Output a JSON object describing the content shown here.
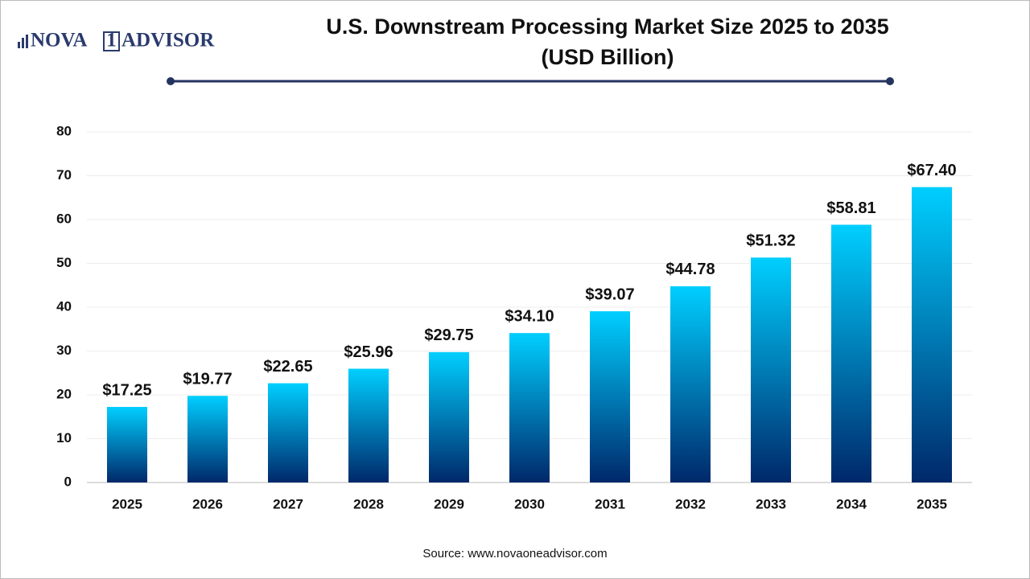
{
  "logo": {
    "left": "NOVA",
    "mark": "1",
    "right": "ADVISOR"
  },
  "chart_data": {
    "type": "bar",
    "title": "U.S. Downstream Processing Market Size 2025 to 2035",
    "subtitle": "(USD Billion)",
    "categories": [
      "2025",
      "2026",
      "2027",
      "2028",
      "2029",
      "2030",
      "2031",
      "2032",
      "2033",
      "2034",
      "2035"
    ],
    "values": [
      17.25,
      19.77,
      22.65,
      25.96,
      29.75,
      34.1,
      39.07,
      44.78,
      51.32,
      58.81,
      67.4
    ],
    "value_labels": [
      "$17.25",
      "$19.77",
      "$22.65",
      "$25.96",
      "$29.75",
      "$34.10",
      "$39.07",
      "$44.78",
      "$51.32",
      "$58.81",
      "$67.40"
    ],
    "gradient": [
      "#00cfff",
      "#00286a"
    ],
    "ylim": [
      0,
      80
    ],
    "yticks": [
      0,
      10,
      20,
      30,
      40,
      50,
      60,
      70,
      80
    ],
    "grid": true,
    "source": "Source: www.novaoneadvisor.com"
  }
}
